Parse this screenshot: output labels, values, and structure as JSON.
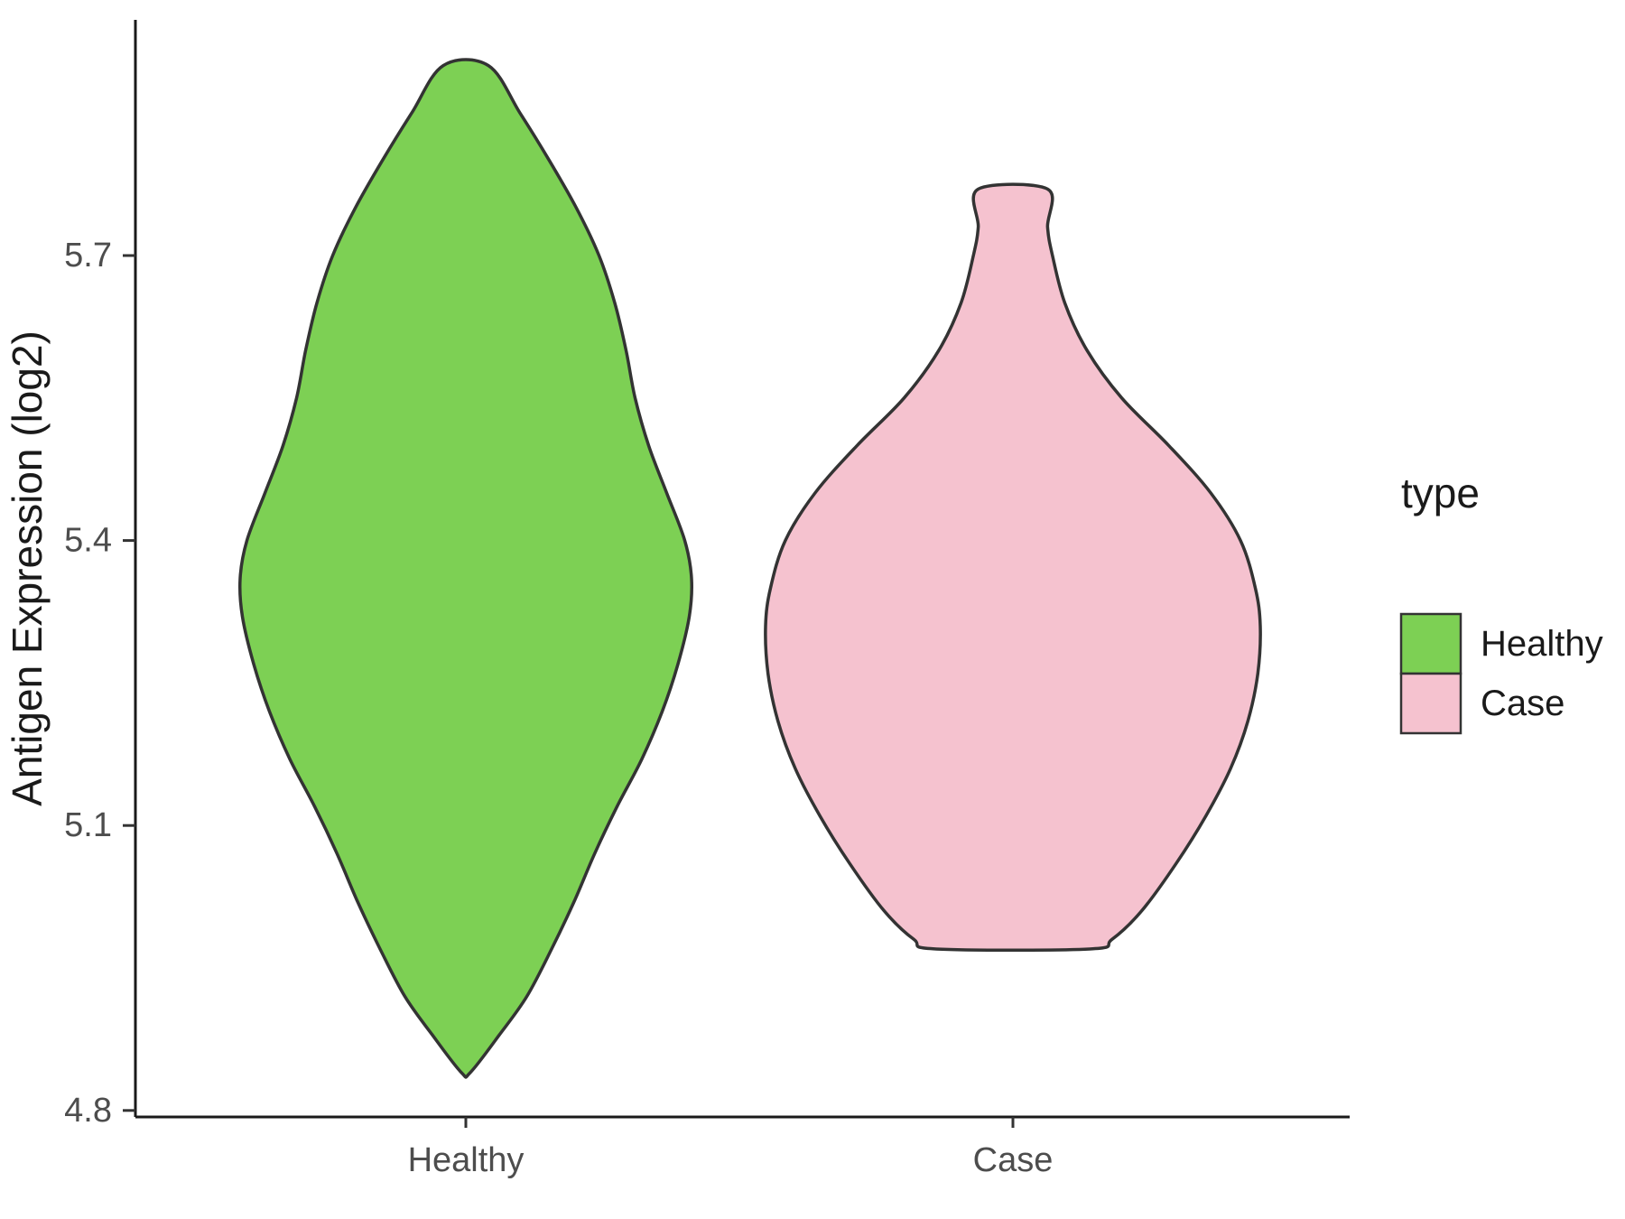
{
  "figure": {
    "background": "#ffffff"
  },
  "legend": {
    "title": "type",
    "entries": [
      {
        "label": "Healthy",
        "color": "#7DD054"
      },
      {
        "label": "Case",
        "color": "#F5C2CF"
      }
    ]
  },
  "chart_data": {
    "type": "violin",
    "title": "",
    "xlabel": "",
    "ylabel": "Antigen Expression (log2)",
    "categories": [
      "Healthy",
      "Case"
    ],
    "ylim": [
      4.75,
      5.95
    ],
    "yticks": [
      5.7,
      5.4,
      5.1,
      4.8
    ],
    "ytick_labels": [
      "5.7",
      "5.4",
      "5.1",
      "4.8"
    ],
    "grid": false,
    "legend_position": "right",
    "outline_color": "#333333",
    "axis_color": "#1a1a1a",
    "tick_text_color": "#4d4d4d",
    "series": [
      {
        "name": "Healthy",
        "fill": "#7DD054",
        "outline": "#333333",
        "value_range": [
          4.84,
          5.9
        ],
        "peak_value": 5.36,
        "profile": [
          [
            5.9,
            0.1
          ],
          [
            5.85,
            0.24
          ],
          [
            5.8,
            0.37
          ],
          [
            5.75,
            0.49
          ],
          [
            5.7,
            0.59
          ],
          [
            5.65,
            0.66
          ],
          [
            5.6,
            0.71
          ],
          [
            5.55,
            0.75
          ],
          [
            5.5,
            0.81
          ],
          [
            5.45,
            0.89
          ],
          [
            5.4,
            0.97
          ],
          [
            5.36,
            1.0
          ],
          [
            5.32,
            0.99
          ],
          [
            5.27,
            0.94
          ],
          [
            5.22,
            0.87
          ],
          [
            5.17,
            0.78
          ],
          [
            5.12,
            0.67
          ],
          [
            5.07,
            0.57
          ],
          [
            5.02,
            0.48
          ],
          [
            4.97,
            0.38
          ],
          [
            4.92,
            0.27
          ],
          [
            4.88,
            0.15
          ],
          [
            4.84,
            0.02
          ]
        ]
      },
      {
        "name": "Case",
        "fill": "#F5C2CF",
        "outline": "#333333",
        "value_range": [
          4.97,
          5.77
        ],
        "peak_value": 5.31,
        "profile": [
          [
            5.77,
            0.14
          ],
          [
            5.73,
            0.14
          ],
          [
            5.7,
            0.16
          ],
          [
            5.65,
            0.21
          ],
          [
            5.6,
            0.3
          ],
          [
            5.55,
            0.44
          ],
          [
            5.5,
            0.63
          ],
          [
            5.45,
            0.8
          ],
          [
            5.4,
            0.92
          ],
          [
            5.35,
            0.98
          ],
          [
            5.31,
            1.0
          ],
          [
            5.26,
            0.99
          ],
          [
            5.21,
            0.95
          ],
          [
            5.16,
            0.88
          ],
          [
            5.11,
            0.78
          ],
          [
            5.06,
            0.66
          ],
          [
            5.01,
            0.52
          ],
          [
            4.98,
            0.4
          ],
          [
            4.97,
            0.31
          ]
        ]
      }
    ]
  }
}
